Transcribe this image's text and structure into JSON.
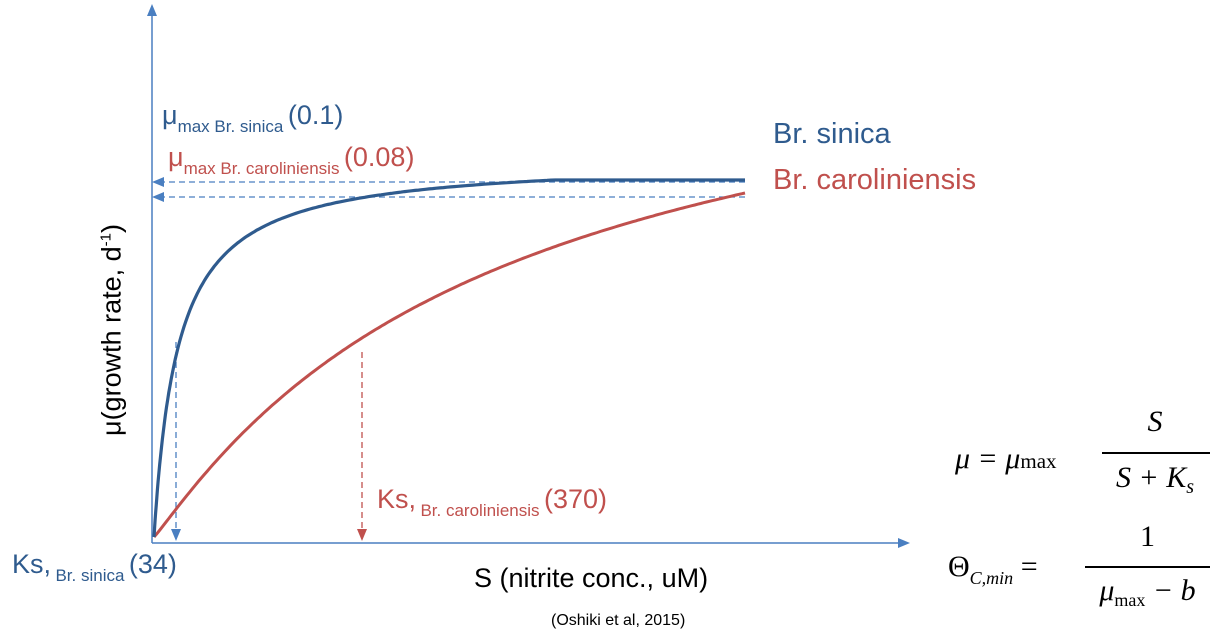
{
  "chart_data": {
    "type": "line",
    "ylabel": "μ(growth rate, d",
    "ylabel_sup": "-1",
    "ylabel_close": ")",
    "xlabel": "S (nitrite conc., uM)",
    "citation": "(Oshiki et al, 2015)",
    "series": [
      {
        "name": "Br. sinica",
        "mu_max": 0.1,
        "Ks": 34,
        "color": "#2f5b8e"
      },
      {
        "name": "Br. carolinensis",
        "mu_max": 0.08,
        "Ks": 370,
        "color": "#c0504d"
      }
    ]
  },
  "labels": {
    "mu_sinica": {
      "mu": "μ",
      "sub": "max Br. sinica",
      "val": "(0.1)"
    },
    "mu_carol": {
      "mu": "μ",
      "sub": "max Br. caroliniensis",
      "val": "(0.08)"
    },
    "ks_carol": {
      "ks": "Ks,",
      "sub": "Br. caroliniensis",
      "val": "(370)"
    },
    "ks_sinica": {
      "ks": "Ks,",
      "sub": "Br. sinica",
      "val": "(34)"
    },
    "legend_sinica": "Br. sinica",
    "legend_carol": "Br. caroliniensis"
  },
  "equations": {
    "monod": {
      "lhs": "μ = μ",
      "lhs_sub": "max",
      "num": "S",
      "den": "S + K",
      "den_sub": "s"
    },
    "srt": {
      "lhs": "Θ",
      "lhs_sub": "C,min",
      "eq": "=",
      "num": "1",
      "den": "μ",
      "den_sub": "max",
      "den_rest": " − b"
    }
  }
}
